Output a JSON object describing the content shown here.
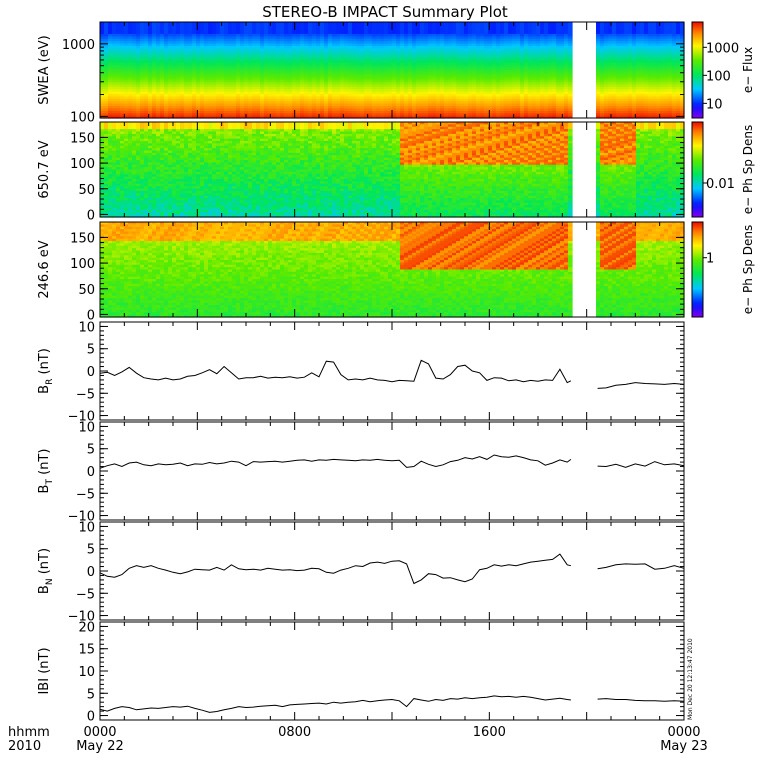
{
  "title": "STEREO-B IMPACT Summary Plot",
  "stamp": "Mon Dec 20 12:13:47 2010",
  "time_axis": {
    "row1_prefix": "hhmm",
    "row2_prefix": "2010",
    "ticks": [
      {
        "hour": 0,
        "label": "0000",
        "date": "May 22"
      },
      {
        "hour": 8,
        "label": "0800",
        "date": ""
      },
      {
        "hour": 16,
        "label": "1600",
        "date": ""
      },
      {
        "hour": 24,
        "label": "0000",
        "date": "May 23"
      }
    ],
    "range_hours": [
      0,
      24
    ],
    "data_gap_hours": [
      19.35,
      20.45
    ]
  },
  "chart_data": [
    {
      "type": "heatmap",
      "ylabel": "SWEA (eV)",
      "yscale": "log",
      "ylim": [
        95,
        2000
      ],
      "yticks": [
        100,
        1000
      ],
      "ytick_labels": [
        "100",
        "1000"
      ],
      "colorbar": {
        "label": "e− Flux",
        "scale": "log",
        "ticks": [
          10,
          100,
          1000
        ],
        "tick_labels": [
          "10",
          "100",
          "1000"
        ],
        "range": [
          3,
          8000
        ]
      }
    },
    {
      "type": "heatmap",
      "ylabel": "650.7 eV",
      "ylim": [
        -5,
        180
      ],
      "yticks": [
        0,
        50,
        100,
        150
      ],
      "ytick_labels": [
        "0",
        "50",
        "100",
        "150"
      ],
      "colorbar": {
        "label": "e− Ph Sp Dens",
        "scale": "log",
        "ticks": [
          0.01
        ],
        "tick_labels": [
          "0.01"
        ],
        "range": [
          0.0015,
          0.3
        ]
      }
    },
    {
      "type": "heatmap",
      "ylabel": "246.6 eV",
      "ylim": [
        -5,
        180
      ],
      "yticks": [
        0,
        50,
        100,
        150
      ],
      "ytick_labels": [
        "0",
        "50",
        "100",
        "150"
      ],
      "colorbar": {
        "label": "e− Ph Sp Dens",
        "scale": "log",
        "ticks": [
          1
        ],
        "tick_labels": [
          "1"
        ],
        "range": [
          0.1,
          4
        ]
      }
    },
    {
      "type": "line",
      "ylabel_main": "B",
      "ylabel_sub": "R",
      "ylabel_unit": " (nT)",
      "ylim": [
        -11,
        11
      ],
      "yticks": [
        -10,
        -5,
        0,
        5,
        10
      ],
      "ytick_labels": [
        "−10",
        "−5",
        "0",
        "5",
        "10"
      ],
      "x": [
        0,
        0.3,
        0.6,
        0.9,
        1.2,
        1.5,
        1.8,
        2.1,
        2.4,
        2.7,
        3,
        3.3,
        3.6,
        3.9,
        4.2,
        4.5,
        4.8,
        5.1,
        5.4,
        5.7,
        6,
        6.3,
        6.6,
        6.9,
        7.2,
        7.5,
        7.8,
        8.1,
        8.4,
        8.7,
        9,
        9.3,
        9.6,
        9.9,
        10.2,
        10.5,
        10.8,
        11.1,
        11.4,
        11.7,
        12,
        12.3,
        12.6,
        12.9,
        13.2,
        13.5,
        13.8,
        14.1,
        14.4,
        14.7,
        15,
        15.3,
        15.6,
        15.9,
        16.2,
        16.5,
        16.8,
        17.1,
        17.4,
        17.7,
        18,
        18.3,
        18.6,
        18.9,
        19.2,
        19.35
      ],
      "values": [
        -0.5,
        -0.3,
        -1,
        -0.2,
        0.8,
        -0.5,
        -1.5,
        -1.8,
        -2,
        -1.6,
        -2,
        -1.8,
        -1.2,
        -1,
        -0.4,
        0.3,
        -0.6,
        1,
        -0.4,
        -1.8,
        -1.5,
        -1.5,
        -1.2,
        -1.6,
        -1.4,
        -1.5,
        -1.3,
        -1.6,
        -1.4,
        -0.4,
        -1.3,
        2.2,
        2,
        -0.8,
        -2,
        -1.8,
        -2,
        -1.6,
        -2,
        -2.1,
        -2.4,
        -2.1,
        -2.2,
        -2.3,
        2.4,
        1.6,
        -1.6,
        -1.8,
        -0.8,
        1,
        1.3,
        0,
        -0.4,
        -2.1,
        -1.5,
        -1.6,
        -2.2,
        -2,
        -2.4,
        -2.1,
        -2.3,
        -2,
        -2.1,
        0.4,
        -2.6,
        -2.2
      ],
      "x2": [
        20.45,
        20.8,
        21.2,
        21.6,
        22,
        22.4,
        22.8,
        23.2,
        23.6,
        24
      ],
      "values2": [
        -3.9,
        -3.8,
        -3.2,
        -3,
        -2.6,
        -2.8,
        -2.9,
        -3,
        -2.8,
        -3
      ]
    },
    {
      "type": "line",
      "ylabel_main": "B",
      "ylabel_sub": "T",
      "ylabel_unit": " (nT)",
      "ylim": [
        -11,
        11
      ],
      "yticks": [
        -10,
        -5,
        0,
        5,
        10
      ],
      "ytick_labels": [
        "−10",
        "−5",
        "0",
        "5",
        "10"
      ],
      "x": [
        0,
        0.3,
        0.6,
        0.9,
        1.2,
        1.5,
        1.8,
        2.1,
        2.4,
        2.7,
        3,
        3.3,
        3.6,
        3.9,
        4.2,
        4.5,
        4.8,
        5.1,
        5.4,
        5.7,
        6,
        6.3,
        6.6,
        6.9,
        7.2,
        7.5,
        7.8,
        8.1,
        8.4,
        8.7,
        9,
        9.3,
        9.6,
        9.9,
        10.2,
        10.5,
        10.8,
        11.1,
        11.4,
        11.7,
        12,
        12.3,
        12.6,
        12.9,
        13.2,
        13.5,
        13.8,
        14.1,
        14.4,
        14.7,
        15,
        15.3,
        15.6,
        15.9,
        16.2,
        16.5,
        16.8,
        17.1,
        17.4,
        17.7,
        18,
        18.3,
        18.6,
        18.9,
        19.2,
        19.35
      ],
      "values": [
        0.6,
        1.2,
        1.6,
        1,
        1.8,
        2,
        1.4,
        1.2,
        1.6,
        1.4,
        1.5,
        1.8,
        1.2,
        1.6,
        1.5,
        1.9,
        1.6,
        1.8,
        2.2,
        2,
        1.2,
        2.1,
        2,
        2.1,
        2.2,
        2,
        2.2,
        2.4,
        2.5,
        2.2,
        2.5,
        2.4,
        2.6,
        2.5,
        2.4,
        2.3,
        2.5,
        2.4,
        2.6,
        2.4,
        2.3,
        2.4,
        0.8,
        1,
        2.2,
        1.5,
        1,
        1.4,
        2.1,
        2.4,
        3,
        2.7,
        3.2,
        2.6,
        3.6,
        3.2,
        3.1,
        3.4,
        3,
        2.5,
        2.3,
        1.3,
        1.8,
        2.5,
        2,
        2.6
      ],
      "x2": [
        20.45,
        20.8,
        21.2,
        21.6,
        22,
        22.4,
        22.8,
        23.2,
        23.6,
        24
      ],
      "values2": [
        1.1,
        1,
        1.5,
        0.8,
        1.6,
        1.1,
        2.1,
        1.4,
        1.6,
        1.2
      ]
    },
    {
      "type": "line",
      "ylabel_main": "B",
      "ylabel_sub": "N",
      "ylabel_unit": " (nT)",
      "ylim": [
        -11,
        11
      ],
      "yticks": [
        -10,
        -5,
        0,
        5,
        10
      ],
      "ytick_labels": [
        "−10",
        "−5",
        "0",
        "5",
        "10"
      ],
      "x": [
        0,
        0.3,
        0.6,
        0.9,
        1.2,
        1.5,
        1.8,
        2.1,
        2.4,
        2.7,
        3,
        3.3,
        3.6,
        3.9,
        4.2,
        4.5,
        4.8,
        5.1,
        5.4,
        5.7,
        6,
        6.3,
        6.6,
        6.9,
        7.2,
        7.5,
        7.8,
        8.1,
        8.4,
        8.7,
        9,
        9.3,
        9.6,
        9.9,
        10.2,
        10.5,
        10.8,
        11.1,
        11.4,
        11.7,
        12,
        12.3,
        12.6,
        12.9,
        13.2,
        13.5,
        13.8,
        14.1,
        14.4,
        14.7,
        15,
        15.3,
        15.6,
        15.9,
        16.2,
        16.5,
        16.8,
        17.1,
        17.4,
        17.7,
        18,
        18.3,
        18.6,
        18.9,
        19.2,
        19.35
      ],
      "values": [
        -0.4,
        -1.2,
        -1.4,
        -0.8,
        0.6,
        1.2,
        0.8,
        1.2,
        0.6,
        0.2,
        -0.3,
        -0.6,
        -0.2,
        0.4,
        0.3,
        0.2,
        0.8,
        0.2,
        1.4,
        0.5,
        0.3,
        0.4,
        0.2,
        0.6,
        0.4,
        0.2,
        0.3,
        0.1,
        0.2,
        0.6,
        0.5,
        -0.3,
        -0.5,
        0.2,
        0.6,
        1.2,
        1,
        1.8,
        2,
        1.7,
        2.2,
        2.3,
        1.6,
        -2.8,
        -2,
        -0.6,
        -0.8,
        -1.6,
        -1.5,
        -2,
        -2.4,
        -1.8,
        0.3,
        0.6,
        1.4,
        1.1,
        1.4,
        1.2,
        1.6,
        2,
        2.2,
        2.4,
        2.6,
        3.8,
        1.4,
        1.2
      ],
      "x2": [
        20.45,
        20.8,
        21.2,
        21.6,
        22,
        22.4,
        22.8,
        23.2,
        23.6,
        24
      ],
      "values2": [
        0.5,
        0.8,
        1.4,
        1.6,
        1.5,
        1.6,
        0.4,
        0.6,
        1.2,
        0.6
      ]
    },
    {
      "type": "line",
      "ylabel_main": "IBI",
      "ylabel_sub": "",
      "ylabel_unit": " (nT)",
      "ylim": [
        -1,
        21
      ],
      "yticks": [
        0,
        5,
        10,
        15,
        20
      ],
      "ytick_labels": [
        "0",
        "5",
        "10",
        "15",
        "20"
      ],
      "x": [
        0,
        0.3,
        0.6,
        0.9,
        1.2,
        1.5,
        1.8,
        2.1,
        2.4,
        2.7,
        3,
        3.3,
        3.6,
        3.9,
        4.2,
        4.5,
        4.8,
        5.1,
        5.4,
        5.7,
        6,
        6.3,
        6.6,
        6.9,
        7.2,
        7.5,
        7.8,
        8.1,
        8.4,
        8.7,
        9,
        9.3,
        9.6,
        9.9,
        10.2,
        10.5,
        10.8,
        11.1,
        11.4,
        11.7,
        12,
        12.3,
        12.6,
        12.9,
        13.2,
        13.5,
        13.8,
        14.1,
        14.4,
        14.7,
        15,
        15.3,
        15.6,
        15.9,
        16.2,
        16.5,
        16.8,
        17.1,
        17.4,
        17.7,
        18,
        18.3,
        18.6,
        18.9,
        19.2,
        19.35
      ],
      "values": [
        1.4,
        1,
        1.6,
        2,
        1.8,
        1.3,
        1.5,
        1.7,
        1.6,
        1.8,
        2,
        1.9,
        2.1,
        1.6,
        1.2,
        0.7,
        0.9,
        1.3,
        1.6,
        2,
        1.8,
        1.9,
        2.1,
        2.2,
        2.3,
        2,
        2.4,
        2.5,
        2.6,
        2.7,
        2.8,
        2.6,
        3,
        2.8,
        3,
        3.1,
        3.4,
        3.1,
        3.3,
        3.5,
        3.6,
        3.3,
        2,
        3.8,
        3.5,
        3.2,
        3.6,
        3.4,
        3.8,
        3.7,
        4,
        3.8,
        4,
        4.1,
        4.4,
        4.2,
        4.3,
        4.1,
        4.3,
        4.1,
        3.8,
        3.5,
        3.7,
        3.9,
        3.6,
        3.5
      ],
      "x2": [
        20.45,
        20.8,
        21.2,
        21.6,
        22,
        22.4,
        22.8,
        23.2,
        23.6,
        24
      ],
      "values2": [
        3.7,
        3.8,
        3.6,
        3.6,
        3.4,
        3.3,
        3.3,
        3.2,
        3.3,
        3.2
      ]
    }
  ]
}
